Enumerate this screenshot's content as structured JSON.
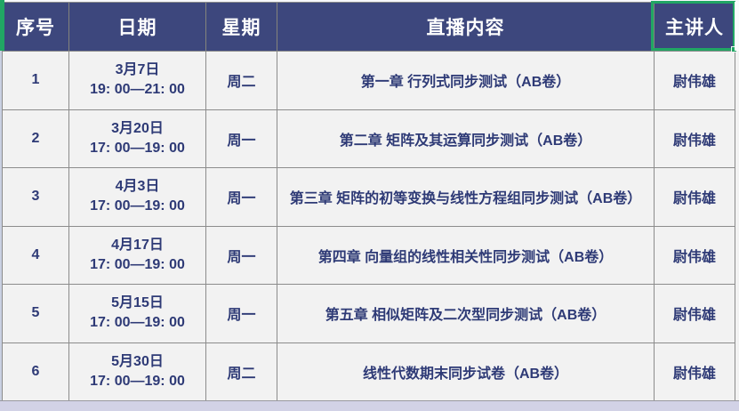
{
  "app": {
    "kind": "spreadsheet-table",
    "selection_color": "#21A664",
    "header_bg_color": "#3D477D",
    "body_text_color": "#2E3A76",
    "row_bg_color": "#F2F2F2",
    "grid_color": "#8C8C8C",
    "bottom_partial_row_color": "#D2D2E6"
  },
  "table": {
    "headers": [
      "序号",
      "日期",
      "星期",
      "直播内容",
      "主讲人"
    ],
    "selected_header": "主讲人",
    "rows": [
      {
        "no": "1",
        "date": "3月7日",
        "time": "19: 00—21: 00",
        "weekday": "周二",
        "content": "第一章 行列式同步测试（AB卷）",
        "lecturer": "尉伟雄"
      },
      {
        "no": "2",
        "date": "3月20日",
        "time": "17: 00—19: 00",
        "weekday": "周一",
        "content": "第二章 矩阵及其运算同步测试（AB卷）",
        "lecturer": "尉伟雄"
      },
      {
        "no": "3",
        "date": "4月3日",
        "time": "17: 00—19: 00",
        "weekday": "周一",
        "content": "第三章 矩阵的初等变换与线性方程组同步测试（AB卷）",
        "lecturer": "尉伟雄"
      },
      {
        "no": "4",
        "date": "4月17日",
        "time": "17: 00—19: 00",
        "weekday": "周一",
        "content": "第四章 向量组的线性相关性同步测试（AB卷）",
        "lecturer": "尉伟雄"
      },
      {
        "no": "5",
        "date": "5月15日",
        "time": "17: 00—19: 00",
        "weekday": "周一",
        "content": "第五章 相似矩阵及二次型同步测试（AB卷）",
        "lecturer": "尉伟雄"
      },
      {
        "no": "6",
        "date": "5月30日",
        "time": "17: 00—19: 00",
        "weekday": "周二",
        "content": "线性代数期末同步试卷（AB卷）",
        "lecturer": "尉伟雄"
      }
    ]
  }
}
